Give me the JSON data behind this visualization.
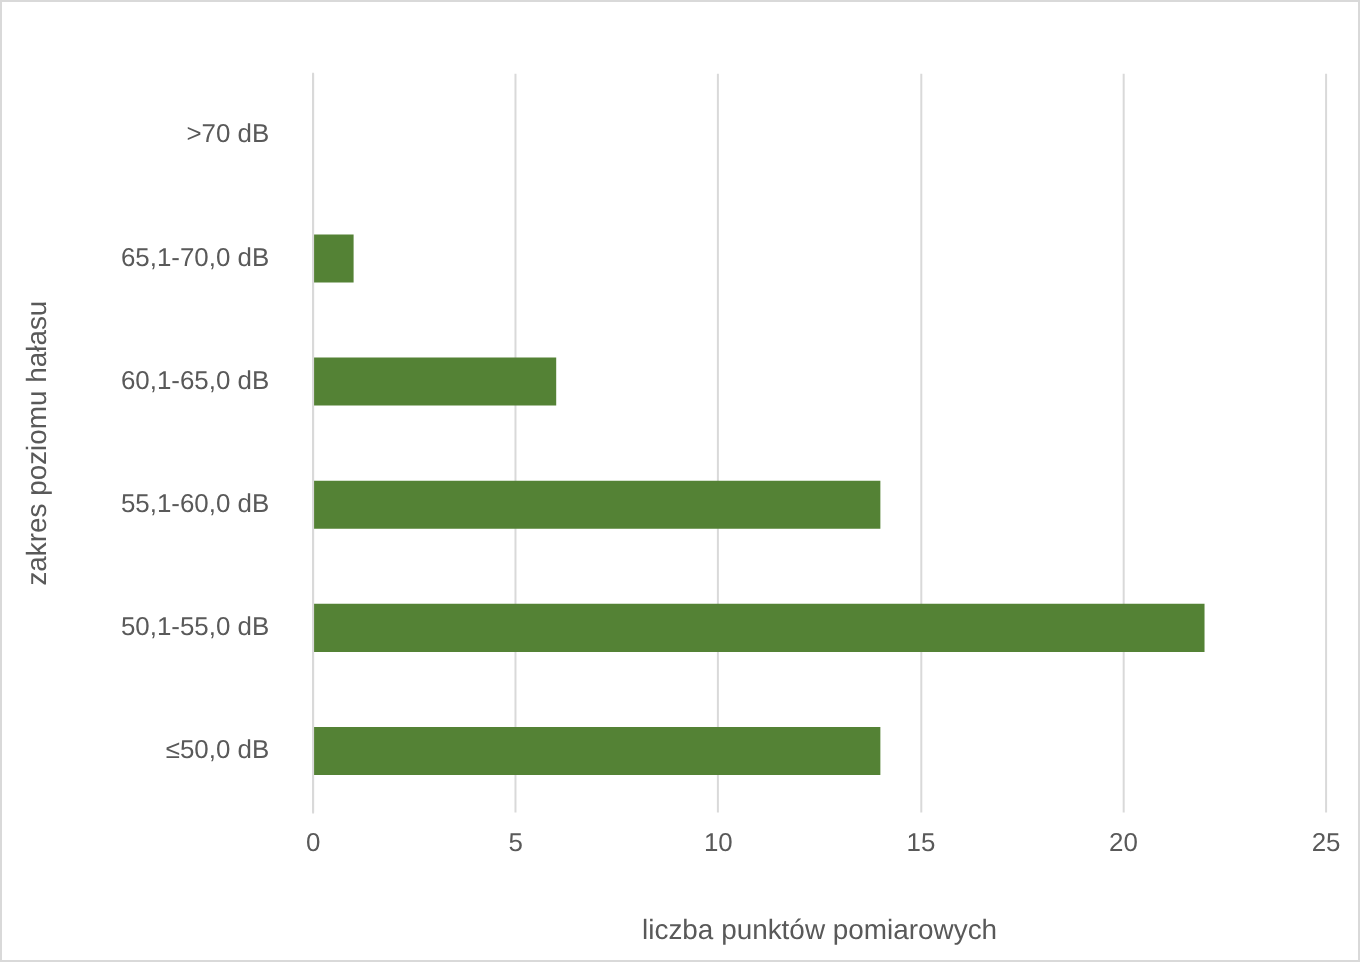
{
  "chart_data": {
    "type": "bar",
    "orientation": "horizontal",
    "categories": [
      ">70 dB",
      "65,1-70,0 dB",
      "60,1-65,0 dB",
      "55,1-60,0 dB",
      "50,1-55,0 dB",
      "≤50,0 dB"
    ],
    "values": [
      0,
      1,
      6,
      14,
      22,
      14
    ],
    "color": "#548235",
    "xlabel": "liczba punktów pomiarowych",
    "ylabel": "zakres poziomu hałasu",
    "xlim": [
      0,
      25
    ],
    "xticks": [
      0,
      5,
      10,
      15,
      20,
      25
    ],
    "grid": "x",
    "legend": false
  }
}
